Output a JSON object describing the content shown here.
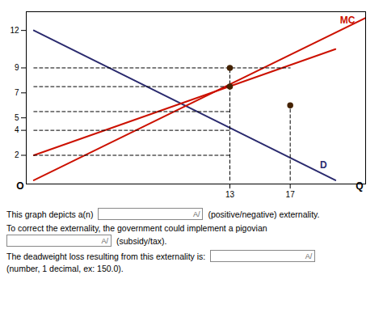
{
  "chart_data": {
    "type": "line",
    "xlim": [
      -0.5,
      22
    ],
    "ylim": [
      -0.3,
      13.5
    ],
    "xticks": [
      13,
      17
    ],
    "yticks": [
      2,
      4,
      5,
      7,
      9,
      12
    ],
    "grid": false,
    "series": [
      {
        "type": "line",
        "color": "#2a2a6e",
        "line_style": "solid",
        "x": [
          0,
          20
        ],
        "values": [
          12,
          0
        ]
      },
      {
        "type": "line",
        "color": "#cc1100",
        "line_style": "solid",
        "x": [
          0,
          22
        ],
        "values": [
          0,
          13
        ]
      },
      {
        "type": "line",
        "color": "#cc1100",
        "line_style": "solid",
        "x": [
          0,
          20
        ],
        "values": [
          2,
          10.5
        ]
      },
      {
        "type": "line",
        "color": "black",
        "line_style": "dashed",
        "x": [
          13,
          13
        ],
        "values": [
          0,
          9
        ]
      },
      {
        "type": "line",
        "color": "black",
        "line_style": "dashed",
        "x": [
          17,
          17
        ],
        "values": [
          0,
          6
        ]
      },
      {
        "type": "line",
        "color": "black",
        "line_style": "dashed",
        "x": [
          0,
          17
        ],
        "values": [
          9,
          9
        ]
      },
      {
        "type": "line",
        "color": "black",
        "line_style": "dashed",
        "x": [
          0,
          13
        ],
        "values": [
          7.5,
          7.5
        ]
      },
      {
        "type": "line",
        "color": "black",
        "line_style": "dashed",
        "x": [
          0,
          13
        ],
        "values": [
          5.5,
          5.5
        ]
      },
      {
        "type": "line",
        "color": "black",
        "line_style": "dashed",
        "x": [
          0,
          13
        ],
        "values": [
          4,
          4
        ]
      },
      {
        "type": "line",
        "color": "black",
        "line_style": "dashed",
        "x": [
          0,
          13
        ],
        "values": [
          2,
          2
        ]
      },
      {
        "type": "scatter",
        "color": "#442200",
        "marker": "circle",
        "x": [
          13,
          13,
          17
        ],
        "values": [
          9,
          7.5,
          6
        ]
      }
    ],
    "annotations": [
      {
        "text": "MC",
        "x": 20.8,
        "y": 12.8,
        "color": "#cc1100"
      },
      {
        "text": "D",
        "x": 19.2,
        "y": 1.2,
        "color": "#2a2a6e"
      },
      {
        "text": "Q",
        "x": 21.6,
        "y": -0.5,
        "color": "black"
      },
      {
        "text": "O",
        "x": -0.9,
        "y": -0.45,
        "color": "black"
      }
    ],
    "caption": [
      [
        "This graph depicts a(n)",
        "A/",
        "(positive/negative) externality."
      ],
      [
        "To correct the externality, the government could implement a pigovian",
        "A/",
        "(subsidy/tax)."
      ],
      [
        "The deadweight loss resulting from this externality is:",
        "A/",
        "(number, 1 decimal, ex: 150.0)."
      ]
    ]
  }
}
